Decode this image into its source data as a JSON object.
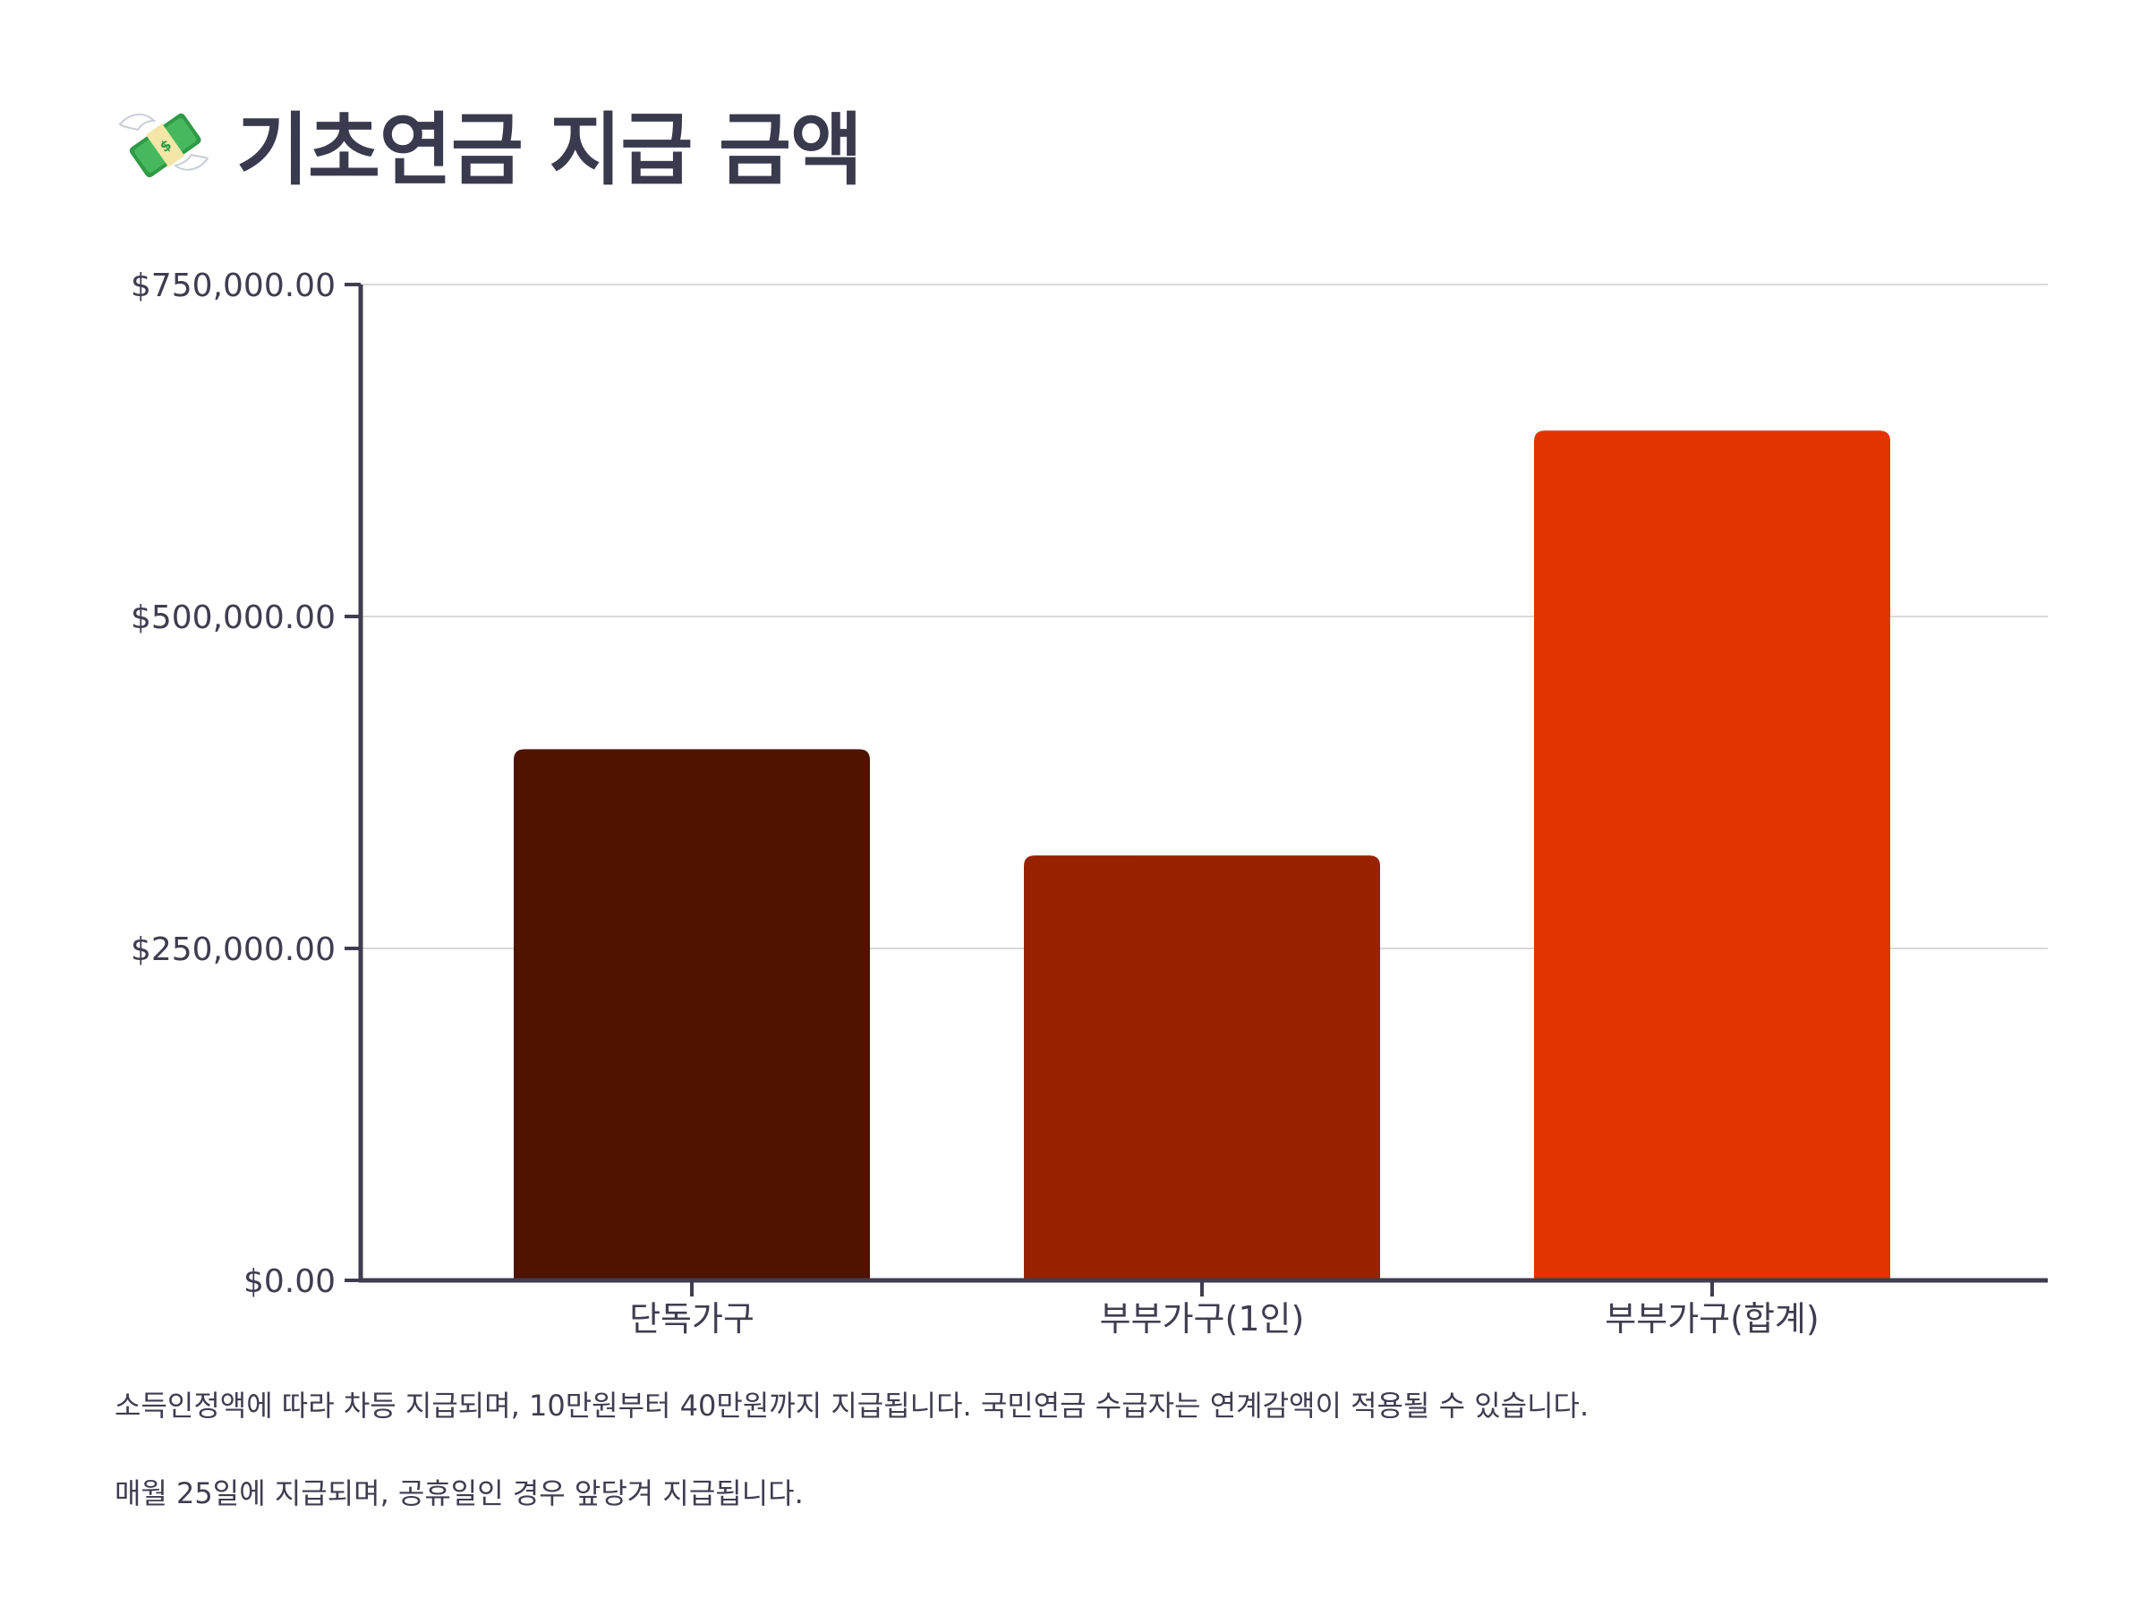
{
  "title": {
    "text": "기초연금 지급 금액",
    "icon": "money-with-wings-icon"
  },
  "notes": [
    "소득인정액에 따라 차등 지급되며, 10만원부터 40만원까지 지급됩니다. 국민연금 수급자는 연계감액이 적용될 수 있습니다.",
    "매월 25일에 지급되며, 공휴일인 경우 앞당겨 지급됩니다."
  ],
  "chart_data": {
    "type": "bar",
    "categories": [
      "단독가구",
      "부부가구(1인)",
      "부부가구(합계)"
    ],
    "values": [
      400000,
      320000,
      640000
    ],
    "colors": [
      "#4f1300",
      "#982200",
      "#e13400"
    ],
    "ylim": [
      0,
      750000
    ],
    "yticks": [
      {
        "value": 0,
        "label": "$0.00"
      },
      {
        "value": 250000,
        "label": "$250,000.00"
      },
      {
        "value": 500000,
        "label": "$500,000.00"
      },
      {
        "value": 750000,
        "label": "$750,000.00"
      }
    ],
    "grid": true,
    "legend": "none"
  }
}
